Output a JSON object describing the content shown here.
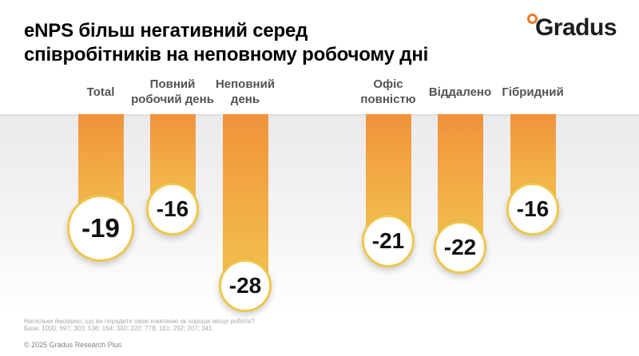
{
  "header": {
    "title_line1": "eNPS більш негативний серед",
    "title_line2": "співробітників на неповному робочому дні",
    "brand": "Gradus"
  },
  "chart_data": {
    "type": "bar",
    "orientation": "hanging-vertical",
    "title": "eNPS більш негативний серед співробітників на неповному робочому дні",
    "categories": [
      "Total",
      "Повний\nробочий день",
      "Неповний\nдень",
      "Офіс\nповністю",
      "Віддалено",
      "Гібридний"
    ],
    "values": [
      -19,
      -16,
      -28,
      -21,
      -22,
      -16
    ],
    "value_labels": [
      "-19",
      "-16",
      "-28",
      "-21",
      "-22",
      "-16"
    ],
    "groups": [
      {
        "name": "employment",
        "categories": [
          "Total",
          "Повний робочий день",
          "Неповний день"
        ]
      },
      {
        "name": "work-mode",
        "categories": [
          "Офіс повністю",
          "Віддалено",
          "Гібридний"
        ]
      }
    ],
    "highlight_category": "Total",
    "legend": false,
    "grid": false,
    "colors": {
      "bar_top": "#f0923b",
      "bar_bottom": "#f3c150",
      "bubble_fill": "#ffffff",
      "bubble_border": "#efc64b",
      "value_text": "#111111",
      "label_text": "#535353",
      "band_background": "#eaeaec"
    }
  },
  "footer": {
    "question": "Наскільки ймовірно, що ви порадите свою компанію як хороше місце роботи?",
    "base": "База: 1000; 697; 303; 536; 164; 300; 222; 778; 161; 292; 207; 341",
    "copyright": "© 2025 Gradus Research Plus"
  }
}
